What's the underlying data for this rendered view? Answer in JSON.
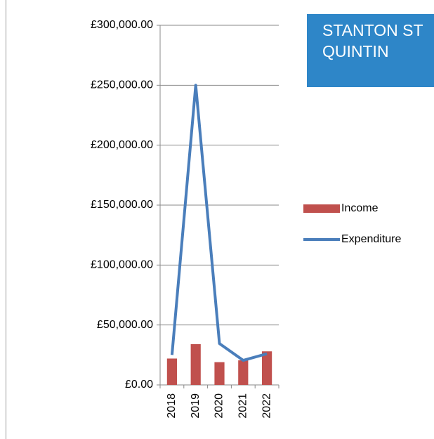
{
  "chart_data": {
    "type": "bar_line",
    "title": "STANTON ST QUINTIN",
    "categories": [
      "2018",
      "2019",
      "2020",
      "2021",
      "2022"
    ],
    "series": [
      {
        "name": "Income",
        "type": "bar",
        "color": "#c0504d",
        "values": [
          22000,
          34000,
          19000,
          20500,
          28000
        ]
      },
      {
        "name": "Expenditure",
        "type": "line",
        "color": "#4a7ebb",
        "values": [
          25000,
          250000,
          34500,
          20500,
          26000
        ]
      }
    ],
    "ylim": [
      0,
      300000
    ],
    "yticks": [
      {
        "value": 0,
        "label": "£0.00"
      },
      {
        "value": 50000,
        "label": "£50,000.00"
      },
      {
        "value": 100000,
        "label": "£100,000.00"
      },
      {
        "value": 150000,
        "label": "£150,000.00"
      },
      {
        "value": 200000,
        "label": "£200,000.00"
      },
      {
        "value": 250000,
        "label": "£250,000.00"
      },
      {
        "value": 300000,
        "label": "£300,000.00"
      }
    ],
    "grid": true,
    "legend": "right"
  }
}
